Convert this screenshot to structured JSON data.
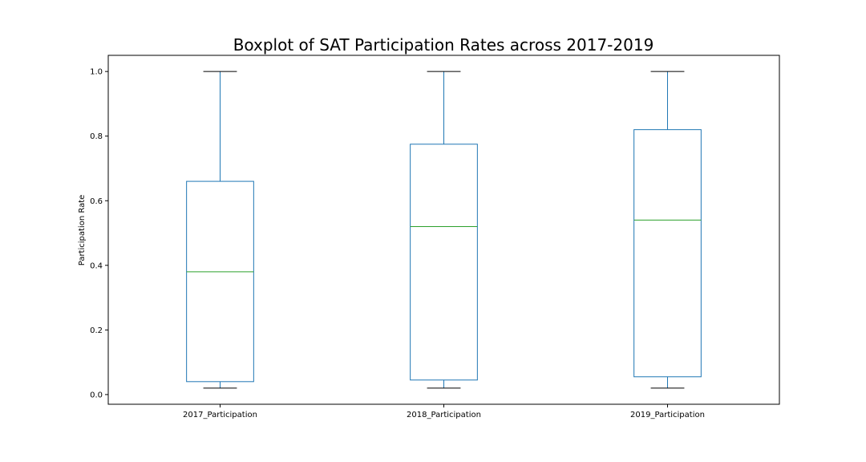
{
  "chart_data": {
    "type": "boxplot",
    "title": "Boxplot of SAT Participation Rates across 2017-2019",
    "xlabel": "",
    "ylabel": "Participation Rate",
    "categories": [
      "2017_Participation",
      "2018_Participation",
      "2019_Participation"
    ],
    "boxes": [
      {
        "category": "2017_Participation",
        "whisker_low": 0.02,
        "q1": 0.04,
        "median": 0.38,
        "q3": 0.66,
        "whisker_high": 1.0
      },
      {
        "category": "2018_Participation",
        "whisker_low": 0.02,
        "q1": 0.045,
        "median": 0.52,
        "q3": 0.775,
        "whisker_high": 1.0
      },
      {
        "category": "2019_Participation",
        "whisker_low": 0.02,
        "q1": 0.055,
        "median": 0.54,
        "q3": 0.82,
        "whisker_high": 1.0
      }
    ],
    "yticks": [
      0.0,
      0.2,
      0.4,
      0.6,
      0.8,
      1.0
    ],
    "ytick_labels": [
      "0.0",
      "0.2",
      "0.4",
      "0.6",
      "0.8",
      "1.0"
    ],
    "ylim": [
      -0.03,
      1.05
    ],
    "grid": false,
    "colors": {
      "box": "#1f77b4",
      "median": "#2ca02c",
      "cap": "#000000"
    }
  }
}
